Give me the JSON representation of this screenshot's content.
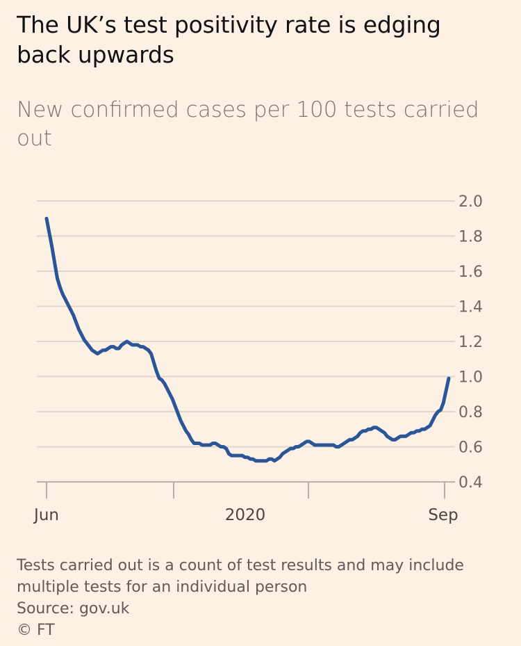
{
  "header": {
    "title": "The UK’s test positivity rate is edging back upwards",
    "subtitle": "New confirmed cases per 100 tests carried out"
  },
  "footer": {
    "note": "Tests carried out is a count of test results and may include multiple tests for an individual person",
    "source": "Source: gov.uk",
    "copyright": "© FT"
  },
  "colors": {
    "background": "#fdf1e6",
    "line": "#2b5597",
    "grid": "#ddd6ce",
    "axis_text": "#6d6762"
  },
  "chart_data": {
    "type": "line",
    "title": "The UK’s test positivity rate is edging back upwards",
    "subtitle": "New confirmed cases per 100 tests carried out",
    "xlabel": "",
    "ylabel": "",
    "x_tick_labels": [
      "Jun",
      "2020",
      "Sep"
    ],
    "y_ticks": [
      2.0,
      1.8,
      1.6,
      1.4,
      1.2,
      1.0,
      0.8,
      0.6,
      0.4
    ],
    "y_tick_labels": [
      "2.0",
      "1.8",
      "1.6",
      "1.4",
      "1.2",
      "1.0",
      "0.8",
      "0.6",
      "0.4"
    ],
    "ylim": [
      0.4,
      2.0
    ],
    "grid": true,
    "y_axis_position": "right",
    "series": [
      {
        "values": [
          1.9,
          1.82,
          1.74,
          1.65,
          1.56,
          1.51,
          1.47,
          1.44,
          1.41,
          1.38,
          1.35,
          1.31,
          1.27,
          1.24,
          1.21,
          1.19,
          1.17,
          1.15,
          1.14,
          1.13,
          1.14,
          1.15,
          1.15,
          1.16,
          1.17,
          1.17,
          1.16,
          1.16,
          1.18,
          1.19,
          1.2,
          1.19,
          1.18,
          1.18,
          1.18,
          1.17,
          1.17,
          1.16,
          1.15,
          1.13,
          1.08,
          1.03,
          0.99,
          0.98,
          0.96,
          0.93,
          0.9,
          0.87,
          0.83,
          0.79,
          0.75,
          0.72,
          0.69,
          0.67,
          0.64,
          0.62,
          0.62,
          0.62,
          0.61,
          0.61,
          0.61,
          0.61,
          0.62,
          0.62,
          0.61,
          0.6,
          0.6,
          0.59,
          0.56,
          0.55,
          0.55,
          0.55,
          0.55,
          0.55,
          0.54,
          0.54,
          0.53,
          0.53,
          0.52,
          0.52,
          0.52,
          0.52,
          0.52,
          0.53,
          0.53,
          0.52,
          0.53,
          0.54,
          0.56,
          0.57,
          0.58,
          0.59,
          0.59,
          0.6,
          0.6,
          0.61,
          0.62,
          0.63,
          0.63,
          0.62,
          0.61,
          0.61,
          0.61,
          0.61,
          0.61,
          0.61,
          0.61,
          0.61,
          0.6,
          0.6,
          0.61,
          0.62,
          0.63,
          0.64,
          0.64,
          0.65,
          0.66,
          0.68,
          0.69,
          0.69,
          0.7,
          0.7,
          0.71,
          0.71,
          0.7,
          0.69,
          0.68,
          0.66,
          0.65,
          0.64,
          0.64,
          0.65,
          0.66,
          0.66,
          0.66,
          0.67,
          0.68,
          0.68,
          0.69,
          0.69,
          0.7,
          0.7,
          0.71,
          0.72,
          0.75,
          0.78,
          0.8,
          0.81,
          0.85,
          0.92,
          0.99
        ]
      }
    ]
  }
}
